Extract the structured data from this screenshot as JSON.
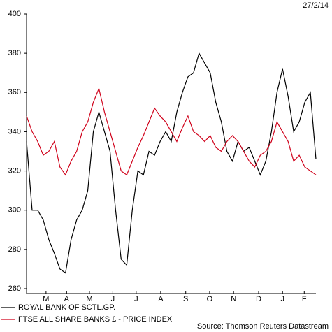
{
  "chart_data": {
    "type": "line",
    "date": "27/2/14",
    "source": "Source: Thomson Reuters Datastream",
    "x": [
      0,
      1,
      2,
      3,
      4,
      5,
      6,
      7,
      8,
      9,
      10,
      11,
      12,
      13,
      14,
      15,
      16,
      17,
      18,
      19,
      20,
      21,
      22,
      23,
      24,
      25,
      26,
      27,
      28,
      29,
      30,
      31,
      32,
      33,
      34,
      35,
      36,
      37,
      38,
      39,
      40,
      41,
      42,
      43,
      44,
      45,
      46,
      47,
      48,
      49,
      50,
      51,
      52
    ],
    "xlim": [
      0,
      52
    ],
    "xticks": [
      {
        "value": 3.5,
        "label": "M"
      },
      {
        "value": 7.2,
        "label": "A"
      },
      {
        "value": 11.3,
        "label": "M"
      },
      {
        "value": 15.5,
        "label": "J"
      },
      {
        "value": 19.7,
        "label": "J"
      },
      {
        "value": 24.1,
        "label": "A"
      },
      {
        "value": 28.6,
        "label": "S"
      },
      {
        "value": 32.9,
        "label": "O"
      },
      {
        "value": 37.2,
        "label": "N"
      },
      {
        "value": 41.7,
        "label": "D"
      },
      {
        "value": 46,
        "label": "J"
      },
      {
        "value": 49.9,
        "label": "F"
      }
    ],
    "ylim": [
      260,
      400
    ],
    "yticks": [
      260,
      280,
      300,
      320,
      340,
      360,
      380,
      400
    ],
    "series": [
      {
        "name": "ROYAL BANK OF SCTL.GP.",
        "color": "#000000",
        "values": [
          335,
          300,
          300,
          295,
          285,
          278,
          270,
          268,
          285,
          295,
          300,
          310,
          340,
          350,
          340,
          330,
          300,
          275,
          272,
          300,
          320,
          318,
          330,
          328,
          335,
          340,
          335,
          350,
          360,
          368,
          370,
          380,
          375,
          370,
          355,
          345,
          330,
          325,
          335,
          330,
          332,
          325,
          318,
          325,
          340,
          360,
          372,
          358,
          340,
          345,
          355,
          360,
          326
        ]
      },
      {
        "name": "FTSE ALL SHARE BANKS £ - PRICE INDEX",
        "color": "#d0021b",
        "values": [
          348,
          340,
          335,
          328,
          330,
          335,
          322,
          318,
          325,
          330,
          340,
          345,
          355,
          362,
          350,
          340,
          330,
          320,
          318,
          325,
          332,
          338,
          345,
          352,
          348,
          345,
          340,
          335,
          342,
          348,
          340,
          338,
          335,
          338,
          332,
          330,
          335,
          338,
          335,
          330,
          325,
          322,
          328,
          330,
          335,
          345,
          340,
          335,
          325,
          328,
          322,
          320,
          318
        ]
      }
    ]
  }
}
